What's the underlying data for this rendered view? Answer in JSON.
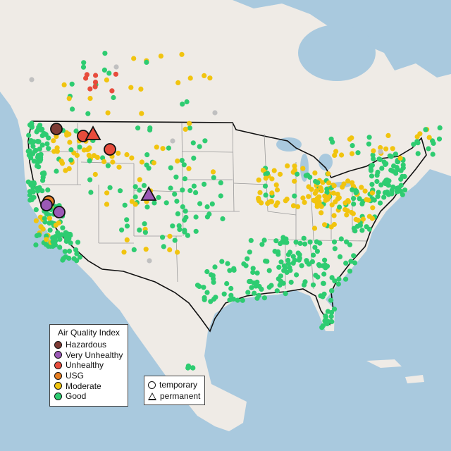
{
  "legend": {
    "title": "Air Quality Index",
    "categories": [
      {
        "label": "Hazardous",
        "color": "#7e3b34"
      },
      {
        "label": "Very Unhealthy",
        "color": "#9b59b6"
      },
      {
        "label": "Unhealthy",
        "color": "#e74c3c"
      },
      {
        "label": "USG",
        "color": "#e67e22"
      },
      {
        "label": "Moderate",
        "color": "#f1c40f"
      },
      {
        "label": "Good",
        "color": "#2ecc71"
      }
    ],
    "no_data_color": "#c0c0c0"
  },
  "type_legend": {
    "temporary_label": "temporary",
    "permanent_label": "permanent"
  },
  "map_style": {
    "water_color": "#a9c9de",
    "land_color": "#efebe6",
    "country_border_color": "#111111",
    "state_border_color": "#9a9a9a"
  },
  "highlighted_sites": [
    {
      "region": "Eastern Washington",
      "aqi": "Hazardous",
      "type": "temporary"
    },
    {
      "region": "Northern Idaho",
      "aqi": "Unhealthy",
      "type": "temporary"
    },
    {
      "region": "Northern Idaho",
      "aqi": "Unhealthy",
      "type": "permanent"
    },
    {
      "region": "Western Montana",
      "aqi": "Unhealthy",
      "type": "temporary"
    },
    {
      "region": "Colorado",
      "aqi": "Very Unhealthy",
      "type": "permanent"
    },
    {
      "region": "Northern California",
      "aqi": "USG",
      "type": "temporary"
    },
    {
      "region": "Northern California",
      "aqi": "Very Unhealthy",
      "type": "temporary"
    },
    {
      "region": "Northern California",
      "aqi": "Very Unhealthy",
      "type": "temporary"
    }
  ]
}
